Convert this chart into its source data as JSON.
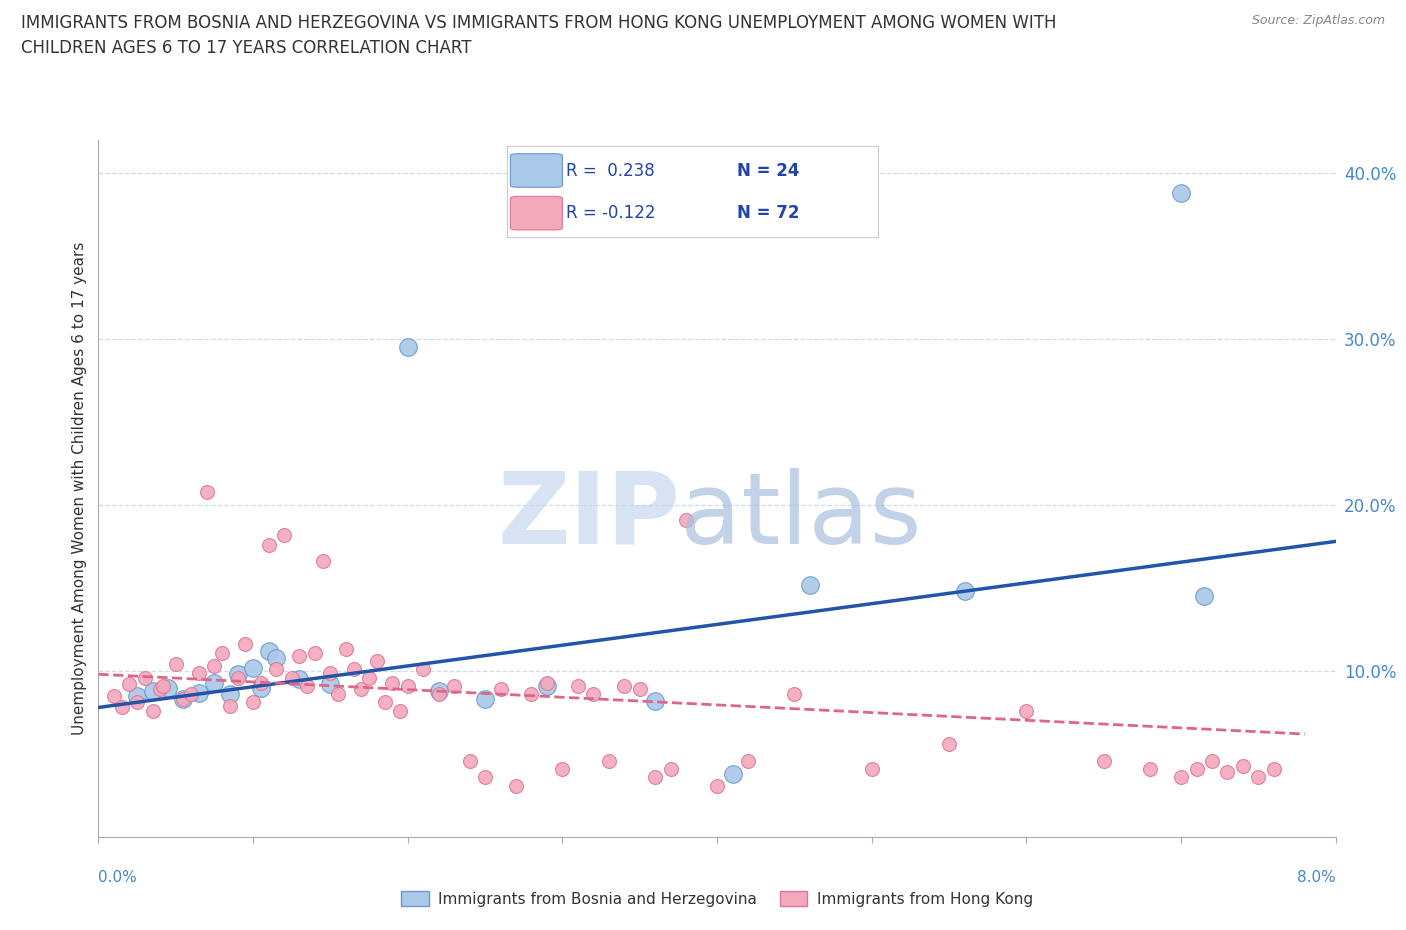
{
  "title_line1": "IMMIGRANTS FROM BOSNIA AND HERZEGOVINA VS IMMIGRANTS FROM HONG KONG UNEMPLOYMENT AMONG WOMEN WITH",
  "title_line2": "CHILDREN AGES 6 TO 17 YEARS CORRELATION CHART",
  "source": "Source: ZipAtlas.com",
  "ylabel": "Unemployment Among Women with Children Ages 6 to 17 years",
  "xlim": [
    0.0,
    8.0
  ],
  "ylim": [
    0.0,
    42.0
  ],
  "right_yticks": [
    10.0,
    20.0,
    30.0,
    40.0
  ],
  "gridline_y": [
    10.0,
    20.0,
    30.0,
    40.0
  ],
  "color_bosnia": "#aac8e8",
  "color_hk": "#f4a8bc",
  "color_bosnia_edge": "#6699cc",
  "color_hk_edge": "#dd7799",
  "trendline_bosnia_color": "#2255aa",
  "trendline_hk_color": "#dd6688",
  "bottom_legend_bosnia": "Immigrants from Bosnia and Herzegovina",
  "bottom_legend_hk": "Immigrants from Hong Kong",
  "legend_r_bosnia": "R =  0.238",
  "legend_n_bosnia": "N = 24",
  "legend_r_hk": "R = -0.122",
  "legend_n_hk": "N = 72",
  "bosnia_scatter": [
    [
      0.25,
      8.5
    ],
    [
      0.35,
      8.8
    ],
    [
      0.45,
      9.0
    ],
    [
      0.55,
      8.3
    ],
    [
      0.65,
      8.7
    ],
    [
      0.75,
      9.3
    ],
    [
      0.85,
      8.6
    ],
    [
      0.9,
      9.8
    ],
    [
      1.0,
      10.2
    ],
    [
      1.05,
      9.0
    ],
    [
      1.1,
      11.2
    ],
    [
      1.15,
      10.8
    ],
    [
      1.3,
      9.5
    ],
    [
      1.5,
      9.2
    ],
    [
      2.0,
      29.5
    ],
    [
      2.2,
      8.8
    ],
    [
      2.5,
      8.3
    ],
    [
      2.9,
      9.1
    ],
    [
      3.6,
      8.2
    ],
    [
      4.1,
      3.8
    ],
    [
      4.6,
      15.2
    ],
    [
      5.6,
      14.8
    ],
    [
      7.0,
      38.8
    ],
    [
      7.15,
      14.5
    ]
  ],
  "hk_scatter": [
    [
      0.1,
      8.5
    ],
    [
      0.15,
      7.8
    ],
    [
      0.2,
      9.2
    ],
    [
      0.25,
      8.1
    ],
    [
      0.3,
      9.6
    ],
    [
      0.35,
      7.6
    ],
    [
      0.4,
      8.9
    ],
    [
      0.42,
      9.1
    ],
    [
      0.5,
      10.4
    ],
    [
      0.55,
      8.3
    ],
    [
      0.6,
      8.6
    ],
    [
      0.65,
      9.9
    ],
    [
      0.7,
      20.8
    ],
    [
      0.75,
      10.3
    ],
    [
      0.8,
      11.1
    ],
    [
      0.85,
      7.9
    ],
    [
      0.9,
      9.6
    ],
    [
      0.95,
      11.6
    ],
    [
      1.0,
      8.1
    ],
    [
      1.05,
      9.3
    ],
    [
      1.1,
      17.6
    ],
    [
      1.15,
      10.1
    ],
    [
      1.2,
      18.2
    ],
    [
      1.25,
      9.6
    ],
    [
      1.3,
      10.9
    ],
    [
      1.35,
      9.1
    ],
    [
      1.4,
      11.1
    ],
    [
      1.45,
      16.6
    ],
    [
      1.5,
      9.9
    ],
    [
      1.55,
      8.6
    ],
    [
      1.6,
      11.3
    ],
    [
      1.65,
      10.1
    ],
    [
      1.7,
      8.9
    ],
    [
      1.75,
      9.6
    ],
    [
      1.8,
      10.6
    ],
    [
      1.85,
      8.1
    ],
    [
      1.9,
      9.3
    ],
    [
      1.95,
      7.6
    ],
    [
      2.0,
      9.1
    ],
    [
      2.1,
      10.1
    ],
    [
      2.2,
      8.6
    ],
    [
      2.3,
      9.1
    ],
    [
      2.4,
      4.6
    ],
    [
      2.5,
      3.6
    ],
    [
      2.6,
      8.9
    ],
    [
      2.7,
      3.1
    ],
    [
      2.8,
      8.6
    ],
    [
      2.9,
      9.3
    ],
    [
      3.0,
      4.1
    ],
    [
      3.1,
      9.1
    ],
    [
      3.2,
      8.6
    ],
    [
      3.3,
      4.6
    ],
    [
      3.4,
      9.1
    ],
    [
      3.5,
      8.9
    ],
    [
      3.6,
      3.6
    ],
    [
      3.7,
      4.1
    ],
    [
      3.8,
      19.1
    ],
    [
      4.0,
      3.1
    ],
    [
      4.2,
      4.6
    ],
    [
      4.5,
      8.6
    ],
    [
      5.0,
      4.1
    ],
    [
      5.5,
      5.6
    ],
    [
      6.0,
      7.6
    ],
    [
      6.5,
      4.6
    ],
    [
      6.8,
      4.1
    ],
    [
      7.0,
      3.6
    ],
    [
      7.1,
      4.1
    ],
    [
      7.2,
      4.6
    ],
    [
      7.3,
      3.9
    ],
    [
      7.4,
      4.3
    ],
    [
      7.5,
      3.6
    ],
    [
      7.6,
      4.1
    ]
  ],
  "bosnia_trend_x": [
    0.0,
    8.0
  ],
  "bosnia_trend_y": [
    7.8,
    17.8
  ],
  "hk_trend_x": [
    0.0,
    7.8
  ],
  "hk_trend_y": [
    9.8,
    6.2
  ]
}
